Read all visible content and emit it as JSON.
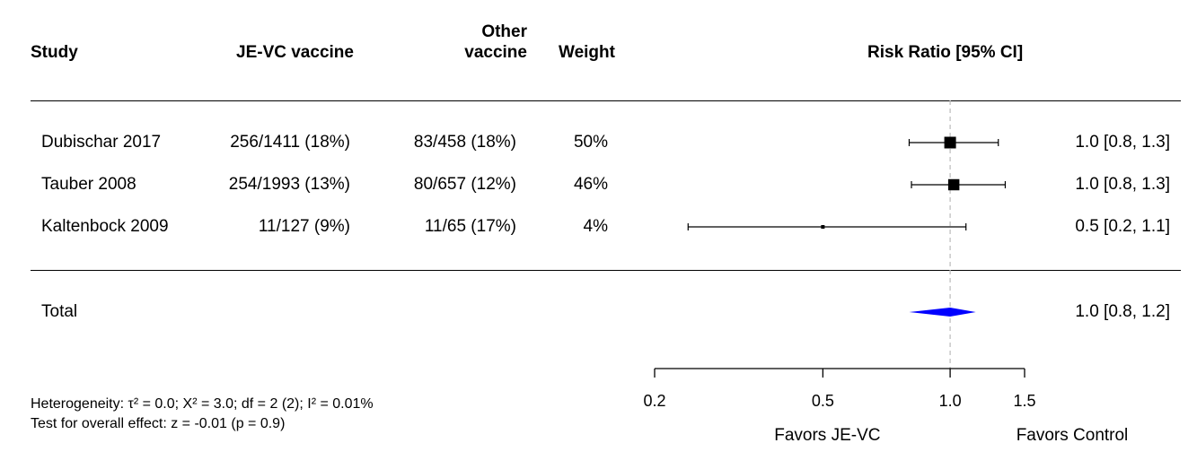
{
  "headers": {
    "study": "Study",
    "vaccine": "JE-VC vaccine",
    "other_line1": "Other",
    "other_line2": "vaccine",
    "weight": "Weight",
    "effect": "Risk Ratio [95% CI]"
  },
  "rows": [
    {
      "study": "Dubischar 2017",
      "vaccine": "256/1411 (18%)",
      "other": "83/458 (18%)",
      "weight": "50%",
      "ci_text": "1.0 [0.8, 1.3]"
    },
    {
      "study": "Tauber 2008",
      "vaccine": "254/1993 (13%)",
      "other": "80/657 (12%)",
      "weight": "46%",
      "ci_text": "1.0 [0.8, 1.3]"
    },
    {
      "study": "Kaltenbock 2009",
      "vaccine": "11/127 (9%)",
      "other": "11/65 (17%)",
      "weight": "4%",
      "ci_text": "0.5 [0.2, 1.1]"
    }
  ],
  "total": {
    "label": "Total",
    "ci_text": "1.0 [0.8, 1.2]"
  },
  "footer": {
    "heterogeneity": "Heterogeneity: τ² = 0.0; Χ² = 3.0; df = 2 (2); I² = 0.01%",
    "overall": "Test for overall effect: z = -0.01 (p = 0.9)"
  },
  "axis": {
    "favors_left": "Favors JE-VC",
    "favors_right": "Favors Control"
  },
  "colors": {
    "summary_diamond": "#0000ff",
    "reference_line": "#bbbbbb"
  },
  "chart_data": {
    "type": "forest",
    "scale": "log",
    "xlim": [
      0.2,
      1.5
    ],
    "ticks": [
      0.2,
      0.5,
      1.0,
      1.5
    ],
    "tick_labels": [
      "0.2",
      "0.5",
      "1.0",
      "1.5"
    ],
    "reference_value": 1.0,
    "title": "Risk Ratio [95% CI]",
    "studies": [
      {
        "name": "Dubischar 2017",
        "estimate": 1.0,
        "lower": 0.8,
        "upper": 1.3,
        "weight": 50
      },
      {
        "name": "Tauber 2008",
        "estimate": 1.02,
        "lower": 0.81,
        "upper": 1.35,
        "weight": 46
      },
      {
        "name": "Kaltenbock 2009",
        "estimate": 0.5,
        "lower": 0.24,
        "upper": 1.09,
        "weight": 4
      }
    ],
    "summary": {
      "estimate": 1.0,
      "lower": 0.8,
      "upper": 1.15
    }
  }
}
